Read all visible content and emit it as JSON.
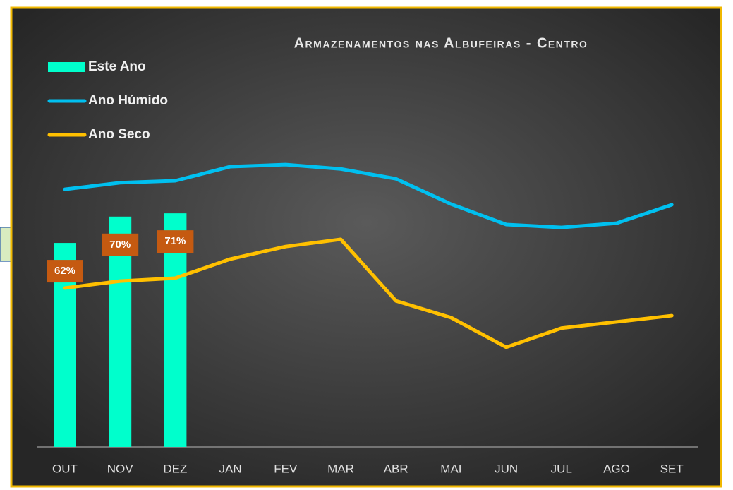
{
  "chart_data": {
    "type": "combo",
    "title": "Armazenamentos nas Albufeiras - Centro",
    "categories": [
      "OUT",
      "NOV",
      "DEZ",
      "JAN",
      "FEV",
      "MAR",
      "ABR",
      "MAI",
      "JUN",
      "JUL",
      "AGO",
      "SET"
    ],
    "ylim": [
      0,
      100
    ],
    "legend": "top-left",
    "series": [
      {
        "name": "Este Ano",
        "type": "bar",
        "color": "#00ffcc",
        "values": [
          62,
          70,
          71,
          null,
          null,
          null,
          null,
          null,
          null,
          null,
          null,
          null
        ],
        "value_labels": [
          "62%",
          "70%",
          "71%",
          null,
          null,
          null,
          null,
          null,
          null,
          null,
          null,
          null
        ],
        "label_color": "#c55a11"
      },
      {
        "name": "Ano Húmido",
        "type": "line",
        "color": "#00c0f0",
        "values": [
          78.3,
          80.3,
          80.9,
          85.2,
          85.8,
          84.5,
          81.5,
          73.8,
          67.6,
          66.7,
          68.0,
          73.6
        ]
      },
      {
        "name": "Ano Seco",
        "type": "line",
        "color": "#ffc000",
        "values": [
          48.3,
          50.4,
          51.3,
          57.1,
          60.9,
          63.1,
          44.4,
          39.3,
          30.3,
          36.1,
          38.0,
          39.9
        ]
      }
    ]
  }
}
